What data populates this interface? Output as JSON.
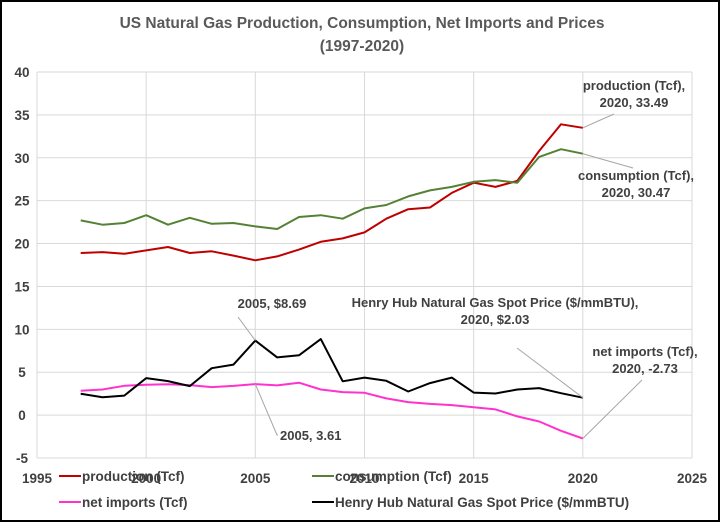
{
  "chart_data": {
    "type": "line",
    "title": "US Natural Gas Production, Consumption, Net Imports and Prices",
    "subtitle": "(1997-2020)",
    "xlabel": "",
    "ylabel": "",
    "xlim": [
      1995,
      2025
    ],
    "ylim": [
      -5,
      40
    ],
    "x_ticks": [
      1995,
      2000,
      2005,
      2010,
      2015,
      2020,
      2025
    ],
    "y_ticks": [
      -5,
      0,
      5,
      10,
      15,
      20,
      25,
      30,
      35,
      40
    ],
    "grid": true,
    "legend_position": "bottom",
    "x": [
      1997,
      1998,
      1999,
      2000,
      2001,
      2002,
      2003,
      2004,
      2005,
      2006,
      2007,
      2008,
      2009,
      2010,
      2011,
      2012,
      2013,
      2014,
      2015,
      2016,
      2017,
      2018,
      2019,
      2020
    ],
    "series": [
      {
        "name": "production (Tcf)",
        "color": "#c00000",
        "values": [
          18.9,
          19.0,
          18.8,
          19.2,
          19.6,
          18.9,
          19.1,
          18.6,
          18.05,
          18.5,
          19.3,
          20.2,
          20.6,
          21.3,
          22.9,
          24.0,
          24.2,
          25.9,
          27.1,
          26.6,
          27.3,
          30.8,
          33.9,
          33.49
        ]
      },
      {
        "name": "consumption (Tcf)",
        "color": "#548235",
        "values": [
          22.7,
          22.2,
          22.4,
          23.3,
          22.2,
          23.0,
          22.3,
          22.4,
          22.0,
          21.7,
          23.1,
          23.3,
          22.9,
          24.1,
          24.5,
          25.5,
          26.2,
          26.6,
          27.2,
          27.4,
          27.1,
          30.1,
          31.0,
          30.47
        ]
      },
      {
        "name": "net imports (Tcf)",
        "color": "#ff33cc",
        "values": [
          2.84,
          2.99,
          3.42,
          3.54,
          3.6,
          3.5,
          3.26,
          3.4,
          3.61,
          3.46,
          3.78,
          2.98,
          2.68,
          2.6,
          1.95,
          1.52,
          1.31,
          1.17,
          0.92,
          0.67,
          -0.15,
          -0.75,
          -1.83,
          -2.73
        ]
      },
      {
        "name": "Henry Hub Natural Gas Spot Price ($/mmBTU)",
        "color": "#000000",
        "values": [
          2.49,
          2.09,
          2.27,
          4.31,
          3.96,
          3.38,
          5.47,
          5.89,
          8.69,
          6.73,
          6.97,
          8.86,
          3.94,
          4.37,
          4.0,
          2.75,
          3.73,
          4.37,
          2.62,
          2.52,
          2.99,
          3.15,
          2.56,
          2.03
        ]
      }
    ],
    "annotations": [
      {
        "series": 0,
        "x": 2020,
        "lines": [
          "production (Tcf),",
          "2020, 33.49"
        ]
      },
      {
        "series": 1,
        "x": 2020,
        "lines": [
          "consumption (Tcf),",
          "2020, 30.47"
        ]
      },
      {
        "series": 3,
        "x": 2020,
        "lines": [
          "Henry Hub Natural Gas Spot Price ($/mmBTU),",
          "2020,  $2.03"
        ]
      },
      {
        "series": 2,
        "x": 2020,
        "lines": [
          "net imports (Tcf),",
          "2020, -2.73"
        ]
      },
      {
        "series": 3,
        "x": 2005,
        "lines": [
          "2005,  $8.69"
        ]
      },
      {
        "series": 2,
        "x": 2005,
        "lines": [
          "2005, 3.61"
        ]
      }
    ]
  }
}
